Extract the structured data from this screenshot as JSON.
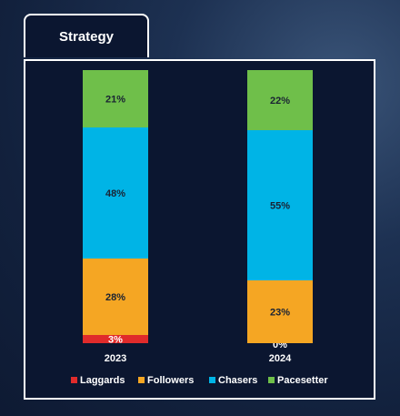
{
  "tab": {
    "title": "Strategy"
  },
  "chart_data": {
    "type": "bar",
    "stacked": true,
    "categories": [
      "2023",
      "2024"
    ],
    "series": [
      {
        "name": "Laggards",
        "color": "#e02b2b",
        "values": [
          3,
          0
        ]
      },
      {
        "name": "Followers",
        "color": "#f5a623",
        "values": [
          28,
          23
        ]
      },
      {
        "name": "Chasers",
        "color": "#00b4e6",
        "values": [
          48,
          55
        ]
      },
      {
        "name": "Pacesetter",
        "color": "#6fbf4a",
        "values": [
          21,
          22
        ]
      }
    ],
    "data_labels": [
      [
        "3%",
        "0%"
      ],
      [
        "28%",
        "23%"
      ],
      [
        "48%",
        "55%"
      ],
      [
        "21%",
        "22%"
      ]
    ],
    "legend_position": "bottom",
    "grid": false
  }
}
